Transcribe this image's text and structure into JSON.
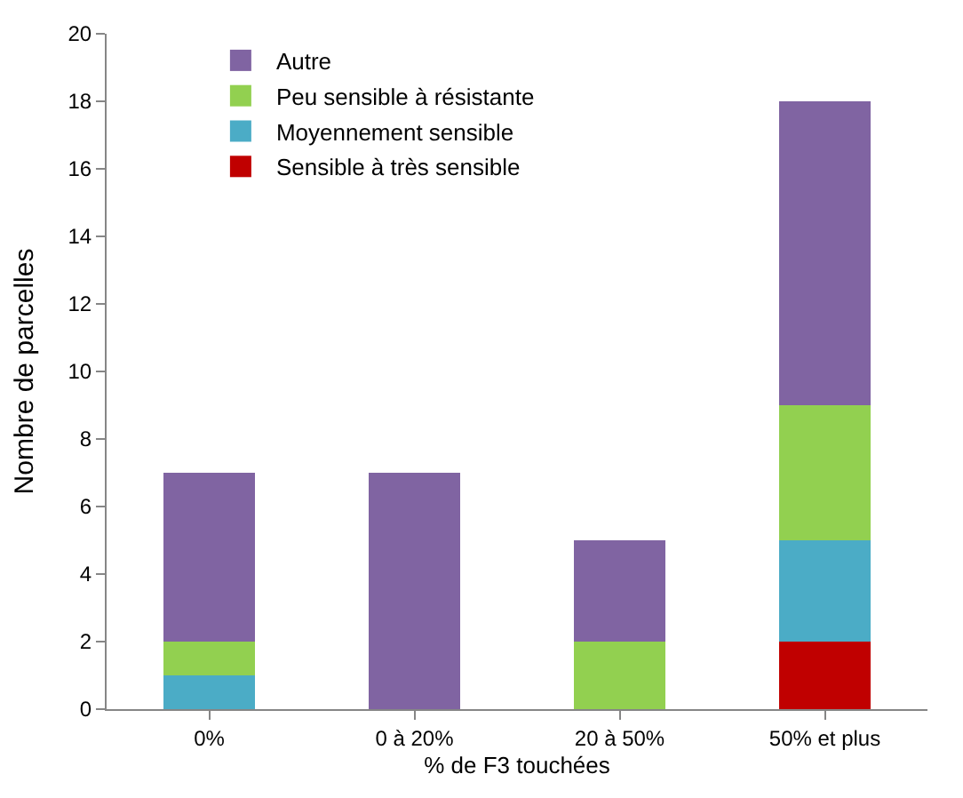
{
  "chart_data": {
    "type": "bar",
    "stacked": true,
    "xlabel": "% de F3 touchées",
    "ylabel": "Nombre de parcelles",
    "categories": [
      "0%",
      "0 à 20%",
      "20 à 50%",
      "50% et plus"
    ],
    "series": [
      {
        "name": "Sensible à très sensible",
        "color": "#c00000",
        "values": [
          0,
          0,
          0,
          2
        ]
      },
      {
        "name": "Moyennement sensible",
        "color": "#4bacc6",
        "values": [
          1,
          0,
          0,
          3
        ]
      },
      {
        "name": "Peu sensible à résistante",
        "color": "#92d050",
        "values": [
          1,
          0,
          2,
          4
        ]
      },
      {
        "name": "Autre",
        "color": "#8064a2",
        "values": [
          5,
          7,
          3,
          9
        ]
      }
    ],
    "ylim": [
      0,
      20
    ],
    "yticks": [
      0,
      2,
      4,
      6,
      8,
      10,
      12,
      14,
      16,
      18,
      20
    ],
    "legend": "top left"
  }
}
